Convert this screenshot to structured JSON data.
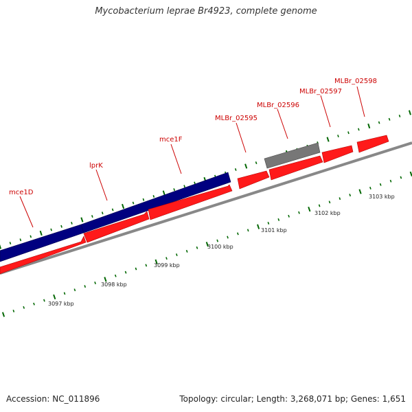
{
  "title": "Mycobacterium leprae Br4923, complete genome",
  "colors": {
    "forward_gene": "#ff1a1a",
    "reverse_gene": "#000080",
    "pseudo_gene": "#777777",
    "backbone": "#888888",
    "tick": "#006600",
    "label": "#cc0000"
  },
  "gene_labels": [
    "mce1D",
    "lprK",
    "mce1F",
    "MLBr_02595",
    "MLBr_02596",
    "MLBr_02597",
    "MLBr_02598"
  ],
  "kbp_labels": [
    "3097 kbp",
    "3098 kbp",
    "3099 kbp",
    "3100 kbp",
    "3101 kbp",
    "3102 kbp",
    "3103 kbp"
  ],
  "footer": {
    "accession": "Accession: NC_011896",
    "summary": "Topology: circular; Length: 3,268,071 bp; Genes: 1,651"
  }
}
